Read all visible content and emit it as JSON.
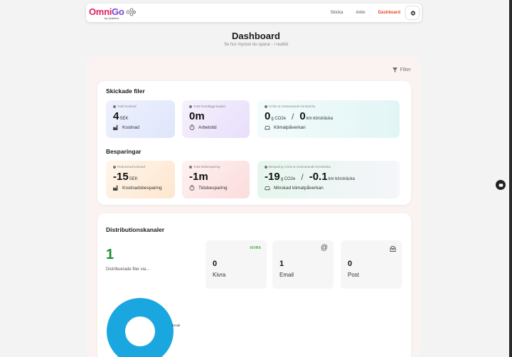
{
  "brand": {
    "name_part1": "Omni",
    "name_part2": "Go",
    "tagline": "by Quickerr"
  },
  "nav": {
    "links": [
      "Skicka",
      "Arkiv",
      "Dashboard"
    ],
    "active": "Dashboard"
  },
  "header": {
    "title": "Dashboard",
    "subtitle": "Se hur mycket du sparar - i realtid"
  },
  "filter_label": "Filter",
  "sent_files": {
    "title": "Skickade filer",
    "cost": {
      "label": "Total kostnad",
      "value": "4",
      "unit": "SEK",
      "caption": "Kostnad"
    },
    "time": {
      "label": "Total handläggningstid",
      "value": "0m",
      "caption": "Arbetstid"
    },
    "climate": {
      "label": "CO2e & motsvarande körsträcka",
      "value1": "0",
      "unit1": "g CO2e",
      "separator": "/",
      "value2": "0",
      "unit2": "km körsträcka",
      "caption": "Klimatpåverkan"
    }
  },
  "savings": {
    "title": "Besparingar",
    "cost": {
      "label": "Reducerad kostnad",
      "value": "-15",
      "unit": "SEK",
      "caption": "Kostnadsbesparing"
    },
    "time": {
      "label": "Total tidsbesparing",
      "value": "-1m",
      "caption": "Tidsbesparing"
    },
    "climate": {
      "label": "Besparing CO2e & motsvarande körsträcka",
      "value1": "-19",
      "unit1": "g CO2e",
      "separator": "/",
      "value2": "-0.1",
      "unit2": "km körsträcka",
      "caption": "Minskad klimatpåverkan"
    }
  },
  "distribution": {
    "title": "Distributionskanaler",
    "total": "1",
    "total_caption": "Distribuerade filer via...",
    "channels": [
      {
        "name": "Kivra",
        "value": "0",
        "icon": "kivra-logo",
        "badge": "KIVRA"
      },
      {
        "name": "Email",
        "value": "1",
        "icon": "at-icon"
      },
      {
        "name": "Post",
        "value": "0",
        "icon": "mailbox-icon"
      }
    ],
    "chart_data": {
      "type": "pie",
      "categories": [
        "Email"
      ],
      "values": [
        1
      ],
      "colors": [
        "#1aa7e0"
      ]
    }
  },
  "colors": {
    "accent": "#e8472a",
    "positive": "#1f8f3a",
    "donut": "#1aa7e0"
  }
}
